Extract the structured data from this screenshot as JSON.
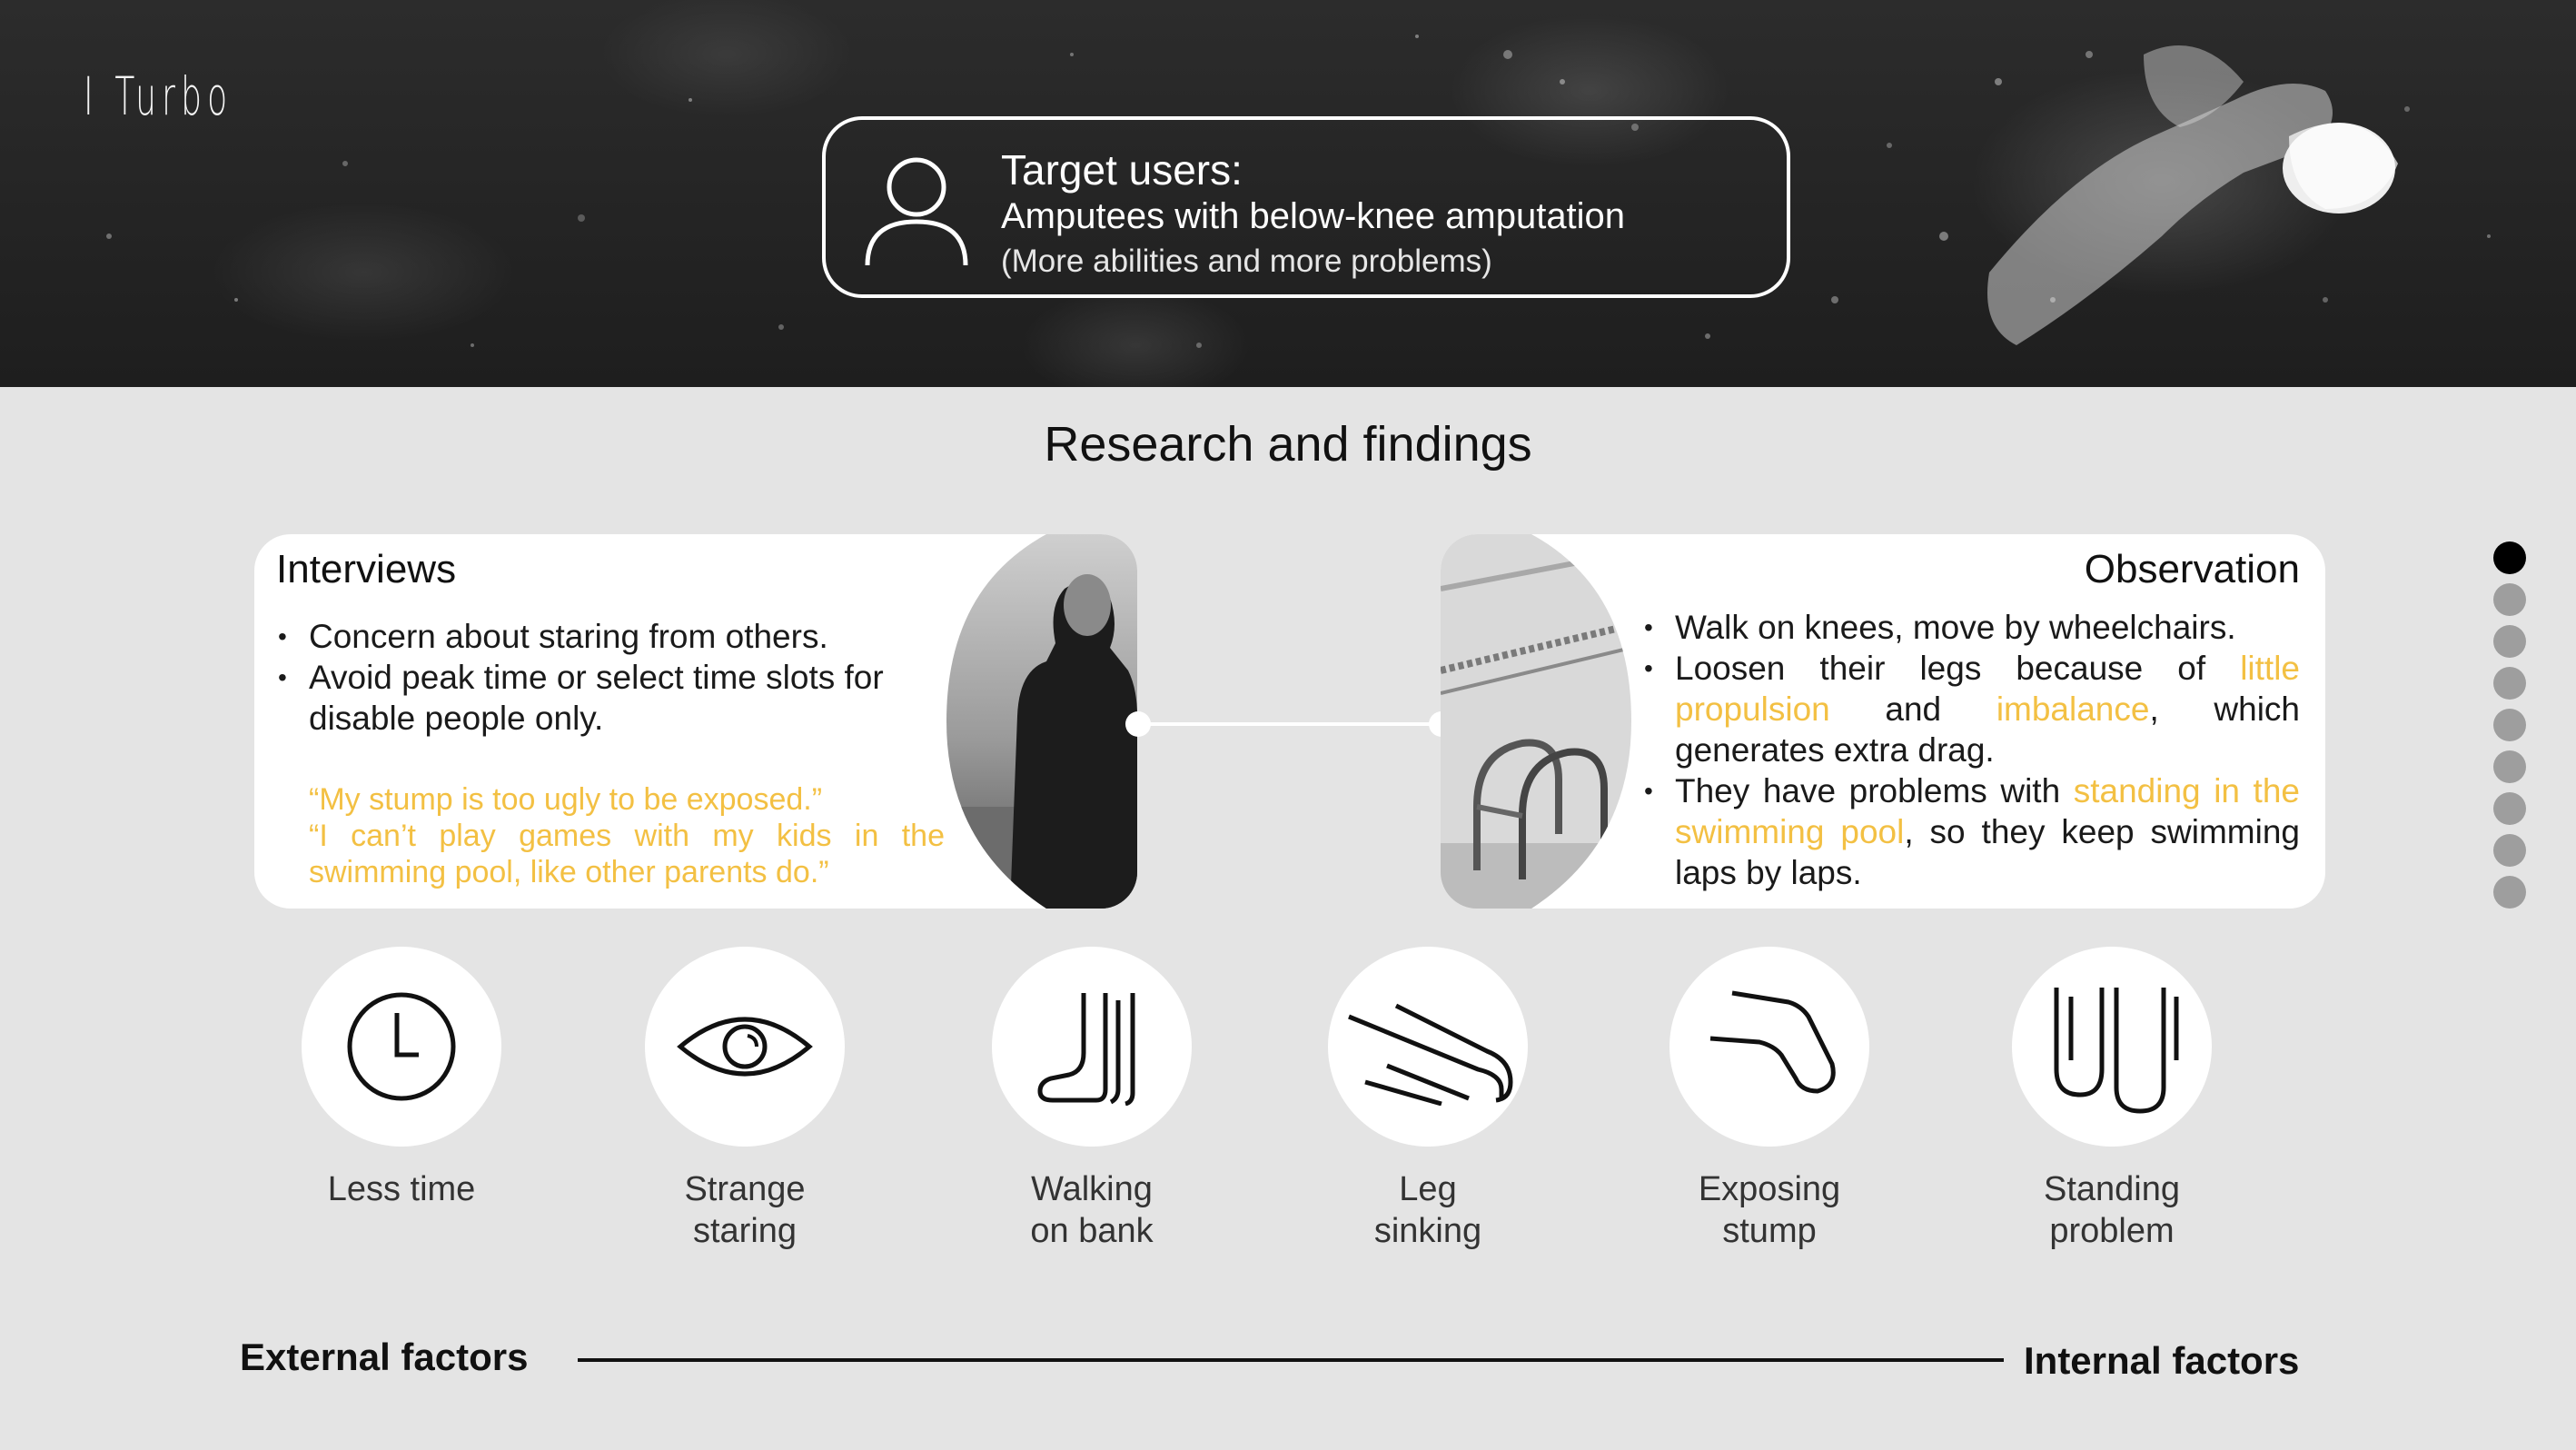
{
  "brand": "I Turbo",
  "target": {
    "title": "Target users:",
    "subtitle": "Amputees with below-knee amputation",
    "note": "(More abilities and more problems)"
  },
  "section_title": "Research and findings",
  "interviews": {
    "heading": "Interviews",
    "bullets": [
      "Concern about staring from others.",
      "Avoid peak time or select time slots for disable people only."
    ],
    "quote1": "“My stump is too ugly to be exposed.”",
    "quote2": "“I can’t play games with my kids in the swimming pool, like other parents do.”"
  },
  "observation": {
    "heading": "Observation",
    "b1": "Walk on knees, move by wheelchairs.",
    "b2_pre": "Loosen their legs because of ",
    "b2_hl1": "little propulsion",
    "b2_mid": " and ",
    "b2_hl2": "imbalance",
    "b2_post": ", which generates extra drag.",
    "b3_pre": "They have problems with ",
    "b3_hl": "standing in the swimming pool",
    "b3_post": ", so they keep swimming laps by laps."
  },
  "problems": [
    {
      "icon": "clock-icon",
      "line1": "Less time",
      "line2": ""
    },
    {
      "icon": "eye-icon",
      "line1": "Strange",
      "line2": "staring"
    },
    {
      "icon": "foot-icon",
      "line1": "Walking",
      "line2": "on bank"
    },
    {
      "icon": "sinking-leg-icon",
      "line1": "Leg",
      "line2": "sinking"
    },
    {
      "icon": "stump-icon",
      "line1": "Exposing",
      "line2": "stump"
    },
    {
      "icon": "standing-legs-icon",
      "line1": "Standing",
      "line2": "problem"
    }
  ],
  "factors": {
    "external": "External factors",
    "internal": "Internal factors"
  },
  "pager": {
    "total": 9,
    "active": 1
  },
  "colors": {
    "highlight": "#f3c043",
    "background": "#e4e4e4",
    "hero": "#222222"
  }
}
